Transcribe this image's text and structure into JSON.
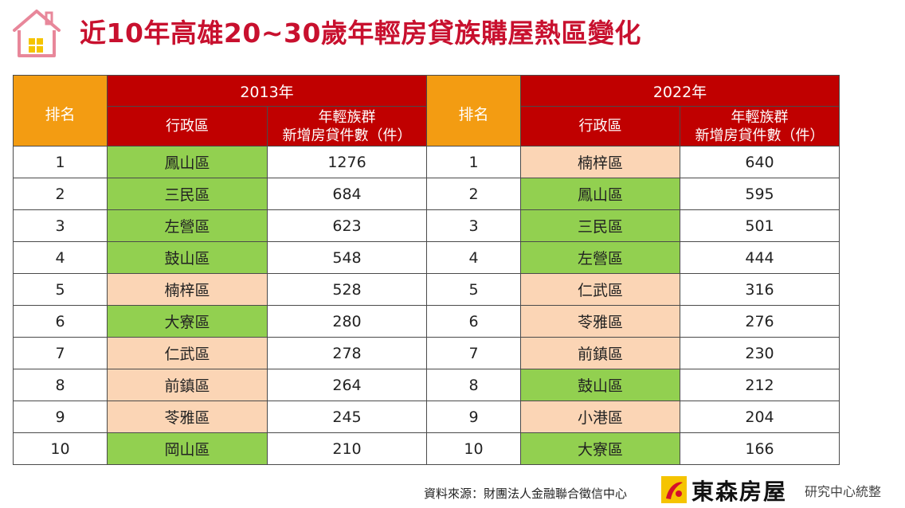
{
  "title": "近10年高雄20~30歲年輕房貸族購屋熱區變化",
  "table": {
    "rank_header": "排名",
    "year_left": "2013年",
    "year_right": "2022年",
    "district_header": "行政區",
    "count_header_line1": "年輕族群",
    "count_header_line2": "新增房貸件數（件）",
    "rows": [
      {
        "rank": "1",
        "left_district": "鳳山區",
        "left_count": "1276",
        "left_color": "green",
        "right_district": "楠梓區",
        "right_count": "640",
        "right_color": "peach"
      },
      {
        "rank": "2",
        "left_district": "三民區",
        "left_count": "684",
        "left_color": "green",
        "right_district": "鳳山區",
        "right_count": "595",
        "right_color": "green"
      },
      {
        "rank": "3",
        "left_district": "左營區",
        "left_count": "623",
        "left_color": "green",
        "right_district": "三民區",
        "right_count": "501",
        "right_color": "green"
      },
      {
        "rank": "4",
        "left_district": "鼓山區",
        "left_count": "548",
        "left_color": "green",
        "right_district": "左營區",
        "right_count": "444",
        "right_color": "green"
      },
      {
        "rank": "5",
        "left_district": "楠梓區",
        "left_count": "528",
        "left_color": "peach",
        "right_district": "仁武區",
        "right_count": "316",
        "right_color": "peach"
      },
      {
        "rank": "6",
        "left_district": "大寮區",
        "left_count": "280",
        "left_color": "green",
        "right_district": "苓雅區",
        "right_count": "276",
        "right_color": "peach"
      },
      {
        "rank": "7",
        "left_district": "仁武區",
        "left_count": "278",
        "left_color": "peach",
        "right_district": "前鎮區",
        "right_count": "230",
        "right_color": "peach"
      },
      {
        "rank": "8",
        "left_district": "前鎮區",
        "left_count": "264",
        "left_color": "peach",
        "right_district": "鼓山區",
        "right_count": "212",
        "right_color": "green"
      },
      {
        "rank": "9",
        "left_district": "苓雅區",
        "left_count": "245",
        "left_color": "peach",
        "right_district": "小港區",
        "right_count": "204",
        "right_color": "peach"
      },
      {
        "rank": "10",
        "left_district": "岡山區",
        "left_count": "210",
        "left_color": "green",
        "right_district": "大寮區",
        "right_count": "166",
        "right_color": "green"
      }
    ]
  },
  "footer": {
    "source": "資料來源：財團法人金融聯合徵信中心",
    "brand": "東森房屋",
    "credit": "研究中心統整"
  },
  "colors": {
    "title": "#c8102e",
    "header_red": "#c00000",
    "rank_orange": "#f39c12",
    "green": "#92d050",
    "peach": "#fbd5b5"
  },
  "icons": {
    "logo": "house-icon",
    "brand": "brand-logo-icon"
  }
}
